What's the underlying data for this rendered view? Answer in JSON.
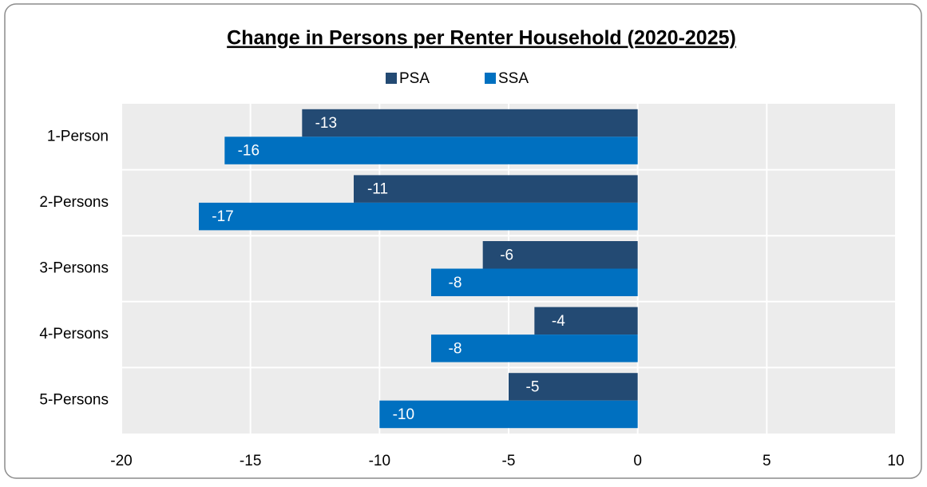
{
  "chart_data": {
    "type": "hbar",
    "title": "Change in Persons per Renter Household (2020-2025)",
    "categories": [
      "1-Person",
      "2-Persons",
      "3-Persons",
      "4-Persons",
      "5-Persons"
    ],
    "series": [
      {
        "name": "PSA",
        "color": "#234a73",
        "values": [
          -13,
          -11,
          -6,
          -4,
          -5
        ]
      },
      {
        "name": "SSA",
        "color": "#0070c0",
        "values": [
          -16,
          -17,
          -8,
          -8,
          -10
        ]
      }
    ],
    "xlim": [
      -20,
      10
    ],
    "xticks": [
      -20,
      -15,
      -10,
      -5,
      0,
      5,
      10
    ],
    "grid": true,
    "legend": "top"
  }
}
